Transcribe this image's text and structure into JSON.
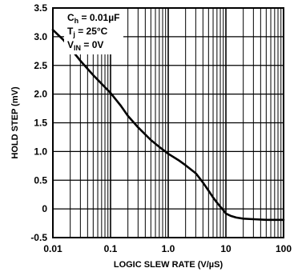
{
  "chart_data": {
    "type": "line",
    "title": "",
    "xlabel": "LOGIC SLEW RATE (V/µS)",
    "ylabel": "HOLD STEP (mV)",
    "x_scale": "log",
    "xlim": [
      0.01,
      100
    ],
    "ylim": [
      -0.5,
      3.5
    ],
    "grid": true,
    "x_tick_labels": [
      "0.01",
      "0.1",
      "1.0",
      "10",
      "100"
    ],
    "x_ticks": [
      0.01,
      0.1,
      1,
      10,
      100
    ],
    "y_tick_labels": [
      "3.5",
      "3.0",
      "2.5",
      "2.0",
      "1.5",
      "1.0",
      "0.5",
      "0",
      "-0.5"
    ],
    "y_ticks": [
      3.5,
      3.0,
      2.5,
      2.0,
      1.5,
      1.0,
      0.5,
      0,
      -0.5
    ],
    "conditions": [
      {
        "main": "C",
        "sub": "h",
        "rest": " = 0.01µF"
      },
      {
        "main": "T",
        "sub": "j",
        "rest": " = 25°C"
      },
      {
        "main": "V",
        "sub": "IN",
        "rest": " = 0V"
      }
    ],
    "series": [
      {
        "x": [
          0.01,
          0.015,
          0.02,
          0.03,
          0.05,
          0.07,
          0.1,
          0.15,
          0.2,
          0.3,
          0.5,
          0.7,
          1.0,
          1.5,
          2.0,
          3.0,
          4.0,
          5.0,
          6.0,
          7.0,
          8.0,
          9.0,
          10,
          12,
          15,
          20,
          30,
          50,
          100
        ],
        "y": [
          3.12,
          2.95,
          2.8,
          2.58,
          2.33,
          2.18,
          2.02,
          1.8,
          1.62,
          1.42,
          1.2,
          1.08,
          0.96,
          0.85,
          0.76,
          0.62,
          0.46,
          0.32,
          0.2,
          0.11,
          0.04,
          -0.02,
          -0.08,
          -0.12,
          -0.15,
          -0.17,
          -0.18,
          -0.19,
          -0.19
        ]
      }
    ]
  }
}
